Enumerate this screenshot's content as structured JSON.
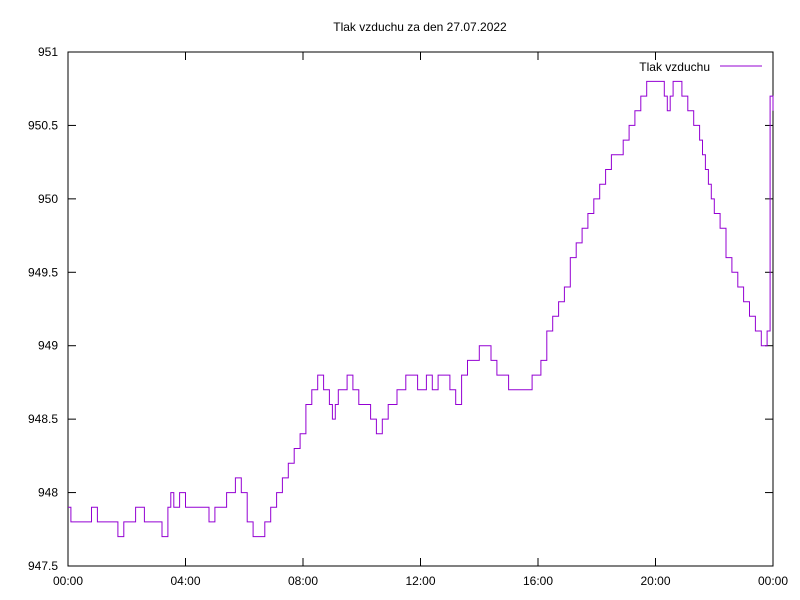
{
  "chart_data": {
    "type": "line",
    "title": "Tlak vzduchu za den 27.07.2022",
    "xlabel": "",
    "ylabel": "",
    "x_unit": "hours",
    "xlim": [
      0,
      24
    ],
    "ylim": [
      947.5,
      951
    ],
    "y_ticks": [
      947.5,
      948,
      948.5,
      949,
      949.5,
      950,
      950.5,
      951
    ],
    "y_tick_labels": [
      "947.5",
      "948",
      "948.5",
      "949",
      "949.5",
      "950",
      "950.5",
      "951"
    ],
    "x_ticks": [
      0,
      4,
      8,
      12,
      16,
      20,
      24
    ],
    "x_tick_labels": [
      "00:00",
      "04:00",
      "08:00",
      "12:00",
      "16:00",
      "20:00",
      "00:00"
    ],
    "grid": false,
    "legend": "top-right",
    "colors": {
      "series": "#9400d3",
      "axis": "#000000"
    },
    "series": [
      {
        "name": "Tlak vzduchu",
        "x": [
          0,
          0.1,
          0.3,
          0.6,
          0.8,
          1.0,
          1.2,
          1.4,
          1.5,
          1.7,
          1.9,
          2.0,
          2.3,
          2.6,
          2.9,
          3.1,
          3.2,
          3.4,
          3.5,
          3.6,
          3.8,
          4.0,
          4.3,
          4.6,
          4.8,
          5.0,
          5.2,
          5.4,
          5.5,
          5.7,
          5.9,
          6.1,
          6.3,
          6.5,
          6.7,
          6.9,
          7.1,
          7.3,
          7.5,
          7.7,
          7.9,
          8.1,
          8.3,
          8.5,
          8.7,
          8.9,
          9.0,
          9.1,
          9.2,
          9.3,
          9.5,
          9.7,
          9.9,
          10.1,
          10.3,
          10.5,
          10.7,
          10.9,
          11.0,
          11.2,
          11.5,
          11.8,
          11.9,
          12.0,
          12.2,
          12.4,
          12.6,
          12.8,
          13.0,
          13.2,
          13.4,
          13.6,
          13.8,
          14.0,
          14.2,
          14.4,
          14.6,
          14.8,
          15.0,
          15.2,
          15.4,
          15.6,
          15.8,
          16.0,
          16.1,
          16.3,
          16.5,
          16.7,
          16.9,
          17.1,
          17.3,
          17.5,
          17.7,
          17.9,
          18.1,
          18.3,
          18.5,
          18.7,
          18.9,
          19.1,
          19.3,
          19.5,
          19.6,
          19.7,
          19.8,
          20.0,
          20.1,
          20.2,
          20.3,
          20.4,
          20.5,
          20.6,
          20.7,
          20.8,
          20.9,
          21.0,
          21.1,
          21.2,
          21.3,
          21.4,
          21.5,
          21.6,
          21.7,
          21.8,
          21.9,
          22.0,
          22.2,
          22.4,
          22.6,
          22.8,
          23.0,
          23.2,
          23.4,
          23.6,
          23.8,
          23.9,
          24.0
        ],
        "values": [
          947.9,
          947.8,
          947.8,
          947.8,
          947.9,
          947.8,
          947.8,
          947.8,
          947.8,
          947.7,
          947.8,
          947.8,
          947.9,
          947.8,
          947.8,
          947.8,
          947.7,
          947.9,
          948.0,
          947.9,
          948.0,
          947.9,
          947.9,
          947.9,
          947.8,
          947.9,
          947.9,
          948.0,
          948.0,
          948.1,
          948.0,
          947.8,
          947.7,
          947.7,
          947.8,
          947.9,
          948.0,
          948.1,
          948.2,
          948.3,
          948.4,
          948.6,
          948.7,
          948.8,
          948.7,
          948.6,
          948.5,
          948.6,
          948.7,
          948.7,
          948.8,
          948.7,
          948.6,
          948.6,
          948.5,
          948.4,
          948.5,
          948.6,
          948.6,
          948.7,
          948.8,
          948.8,
          948.7,
          948.7,
          948.8,
          948.7,
          948.8,
          948.8,
          948.7,
          948.6,
          948.8,
          948.9,
          948.9,
          949.0,
          949.0,
          948.9,
          948.8,
          948.8,
          948.7,
          948.7,
          948.7,
          948.7,
          948.8,
          948.8,
          948.9,
          949.1,
          949.2,
          949.3,
          949.4,
          949.6,
          949.7,
          949.8,
          949.9,
          950.0,
          950.1,
          950.2,
          950.3,
          950.3,
          950.4,
          950.5,
          950.6,
          950.7,
          950.7,
          950.8,
          950.8,
          950.8,
          950.8,
          950.8,
          950.7,
          950.6,
          950.7,
          950.8,
          950.8,
          950.8,
          950.7,
          950.7,
          950.6,
          950.6,
          950.5,
          950.5,
          950.4,
          950.3,
          950.2,
          950.1,
          950.0,
          949.9,
          949.8,
          949.6,
          949.5,
          949.4,
          949.3,
          949.2,
          949.1,
          949.0,
          949.1,
          950.7,
          950.6
        ]
      }
    ]
  }
}
